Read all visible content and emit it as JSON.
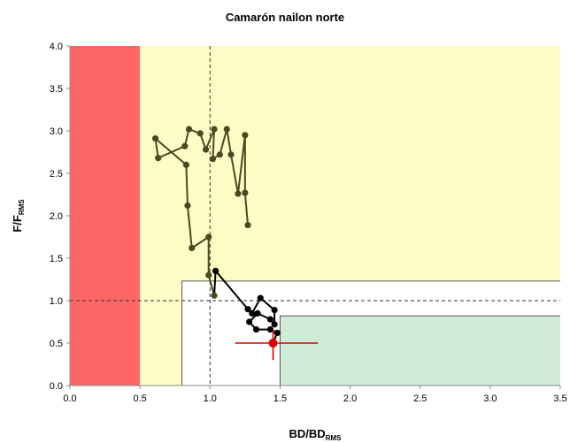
{
  "chart_data": {
    "type": "scatter",
    "title": "Camarón nailon norte",
    "xlabel": {
      "main": "BD/BD",
      "sub": "RMS"
    },
    "ylabel": {
      "main": "F/F",
      "sub": "RMS"
    },
    "xlim": [
      0,
      3.5
    ],
    "ylim": [
      0,
      4.0
    ],
    "x_ticks": [
      "0.0",
      "0.5",
      "1.0",
      "1.5",
      "2.0",
      "2.5",
      "3.0",
      "3.5"
    ],
    "y_ticks": [
      "0.0",
      "0.5",
      "1.0",
      "1.5",
      "2.0",
      "2.5",
      "3.0",
      "3.5",
      "4.0"
    ],
    "zones": [
      {
        "name": "collapse",
        "x": [
          0,
          0.5
        ],
        "y": [
          0,
          4.0
        ],
        "color": "#ff6666"
      },
      {
        "name": "overexploitation",
        "x": [
          0.5,
          3.5
        ],
        "y": [
          0,
          4.0
        ],
        "color": "#fefcc4"
      },
      {
        "name": "full-exploitation",
        "x": [
          0.8,
          3.5
        ],
        "y": [
          0,
          1.23
        ],
        "color": "#ffffff"
      },
      {
        "name": "underexploitation",
        "x": [
          1.5,
          3.5
        ],
        "y": [
          0,
          0.82
        ],
        "color": "#cfebd9"
      }
    ],
    "reference_lines": {
      "x": 1.0,
      "y": 1.0
    },
    "series": [
      {
        "color": "#4a4a22",
        "points": [
          [
            1.27,
            1.89
          ],
          [
            1.25,
            2.27
          ],
          [
            1.25,
            2.95
          ],
          [
            1.2,
            2.26
          ],
          [
            1.15,
            2.72
          ],
          [
            1.12,
            3.02
          ],
          [
            1.07,
            2.72
          ],
          [
            1.02,
            2.67
          ],
          [
            1.03,
            3.02
          ],
          [
            0.97,
            2.78
          ],
          [
            0.93,
            2.97
          ],
          [
            0.85,
            3.02
          ],
          [
            0.82,
            2.82
          ],
          [
            0.63,
            2.68
          ],
          [
            0.61,
            2.91
          ],
          [
            0.83,
            2.6
          ],
          [
            0.84,
            2.12
          ],
          [
            0.87,
            1.62
          ],
          [
            0.99,
            1.75
          ],
          [
            0.99,
            1.3
          ],
          [
            1.03,
            1.06
          ]
        ]
      },
      {
        "color": "#000000",
        "points": [
          [
            1.04,
            1.35
          ],
          [
            1.27,
            0.9
          ],
          [
            1.3,
            0.85
          ],
          [
            1.36,
            1.03
          ],
          [
            1.46,
            0.89
          ],
          [
            1.46,
            0.72
          ],
          [
            1.43,
            0.78
          ],
          [
            1.34,
            0.85
          ],
          [
            1.28,
            0.75
          ],
          [
            1.33,
            0.66
          ],
          [
            1.43,
            0.66
          ],
          [
            1.48,
            0.62
          ]
        ]
      }
    ],
    "current": {
      "x": 1.45,
      "y": 0.5,
      "color": "#dd0000",
      "x_error": [
        1.18,
        1.77
      ],
      "y_error": [
        0.3,
        0.65
      ]
    }
  }
}
